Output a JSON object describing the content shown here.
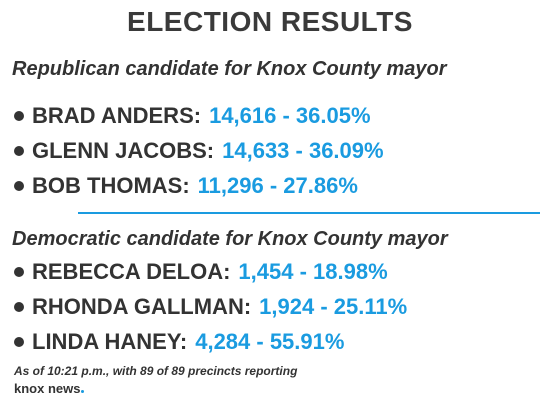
{
  "title": "ELECTION RESULTS",
  "sections": [
    {
      "heading": "Republican candidate for Knox County mayor",
      "candidates": [
        {
          "name": "BRAD ANDERS:",
          "result": "14,616 - 36.05%"
        },
        {
          "name": "GLENN JACOBS:",
          "result": "14,633 - 36.09%"
        },
        {
          "name": "BOB THOMAS:",
          "result": "11,296 - 27.86%"
        }
      ]
    },
    {
      "heading": "Democratic candidate for Knox County mayor",
      "candidates": [
        {
          "name": "REBECCA DELOA:",
          "result": "1,454 - 18.98%"
        },
        {
          "name": "RHONDA GALLMAN:",
          "result": "1,924 - 25.11%"
        },
        {
          "name": "LINDA HANEY:",
          "result": "4,284 - 55.91%"
        }
      ]
    }
  ],
  "note": "As of 10:21 p.m., with 89 of 89 precincts reporting",
  "logo": "knox news"
}
